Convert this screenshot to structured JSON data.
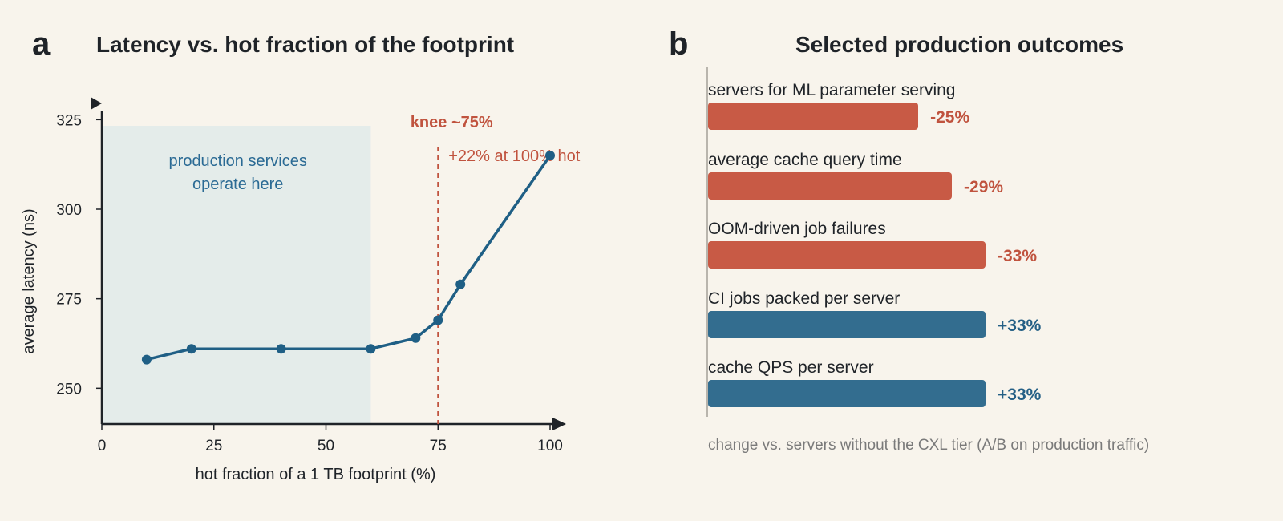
{
  "panel_a": {
    "letter": "a",
    "title": "Latency vs. hot fraction of the footprint"
  },
  "panel_b": {
    "letter": "b",
    "title": "Selected production outcomes",
    "caption": "change vs. servers without the CXL tier (A/B on production traffic)"
  },
  "colors": {
    "line": "#1f5f85",
    "accent": "#c0533e",
    "region": "#e4ecea",
    "region_text": "#2a6a94",
    "negative_bar": "#c85a45",
    "positive_bar": "#336d8f"
  },
  "chart_data": [
    {
      "type": "line",
      "title": "Latency vs. hot fraction of the footprint",
      "xlabel": "hot fraction of a 1 TB footprint (%)",
      "ylabel": "average latency (ns)",
      "xlim": [
        0,
        100
      ],
      "ylim": [
        240,
        330
      ],
      "xticks": [
        0,
        25,
        50,
        75,
        100
      ],
      "yticks": [
        250,
        275,
        300,
        325
      ],
      "grid": false,
      "series": [
        {
          "x": [
            10,
            20,
            40,
            60,
            70,
            75,
            80,
            100
          ],
          "y": [
            258,
            261,
            261,
            261,
            264,
            269,
            279,
            315
          ]
        }
      ],
      "annotations": {
        "region": {
          "x_range": [
            0,
            60
          ],
          "text_lines": [
            "production services",
            "operate here"
          ]
        },
        "knee": {
          "x": 75,
          "label": "knee ~75%",
          "note": "+22% at 100% hot"
        }
      }
    },
    {
      "type": "bar",
      "orientation": "horizontal",
      "title": "Selected production outcomes",
      "categories": [
        "servers for ML parameter serving",
        "average cache query time",
        "OOM-driven job failures",
        "CI jobs packed per server",
        "cache QPS per server"
      ],
      "values": [
        -25,
        -29,
        -33,
        33,
        33
      ],
      "value_labels": [
        "-25%",
        "-29%",
        "-33%",
        "+33%",
        "+33%"
      ],
      "unit": "%"
    }
  ]
}
